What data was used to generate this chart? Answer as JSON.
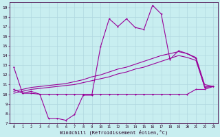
{
  "xlabel": "Windchill (Refroidissement éolien,°C)",
  "bg_color": "#c8eef0",
  "grid_color": "#b0d8e0",
  "line_color": "#990099",
  "hours": [
    0,
    1,
    2,
    3,
    4,
    5,
    6,
    7,
    8,
    9,
    10,
    11,
    12,
    13,
    14,
    15,
    16,
    17,
    18,
    19,
    20,
    21,
    22,
    23
  ],
  "curve1": [
    12.8,
    10.1,
    10.3,
    10.0,
    7.5,
    7.5,
    7.3,
    7.9,
    9.9,
    9.9,
    14.9,
    17.8,
    17.0,
    17.8,
    16.9,
    16.7,
    19.2,
    18.3,
    13.6,
    14.5,
    14.2,
    13.7,
    10.7,
    10.8
  ],
  "curve2": [
    10.5,
    10.1,
    10.1,
    10.0,
    10.0,
    10.0,
    10.0,
    10.0,
    10.0,
    10.0,
    10.0,
    10.0,
    10.0,
    10.0,
    10.0,
    10.0,
    10.0,
    10.0,
    10.0,
    10.0,
    10.0,
    10.5,
    10.5,
    10.8
  ],
  "curve3": [
    10.1,
    10.3,
    10.5,
    10.6,
    10.7,
    10.8,
    10.9,
    11.0,
    11.2,
    11.4,
    11.6,
    11.8,
    12.1,
    12.3,
    12.6,
    12.8,
    13.1,
    13.4,
    13.7,
    14.0,
    13.8,
    13.5,
    10.8,
    10.8
  ],
  "curve4": [
    10.3,
    10.5,
    10.7,
    10.8,
    10.9,
    11.0,
    11.1,
    11.3,
    11.5,
    11.8,
    12.0,
    12.3,
    12.6,
    12.8,
    13.1,
    13.4,
    13.7,
    14.0,
    14.2,
    14.4,
    14.2,
    13.8,
    11.0,
    10.8
  ],
  "ylim": [
    7,
    19.5
  ],
  "yticks": [
    7,
    8,
    9,
    10,
    11,
    12,
    13,
    14,
    15,
    16,
    17,
    18,
    19
  ],
  "xlim": [
    -0.5,
    23.5
  ]
}
